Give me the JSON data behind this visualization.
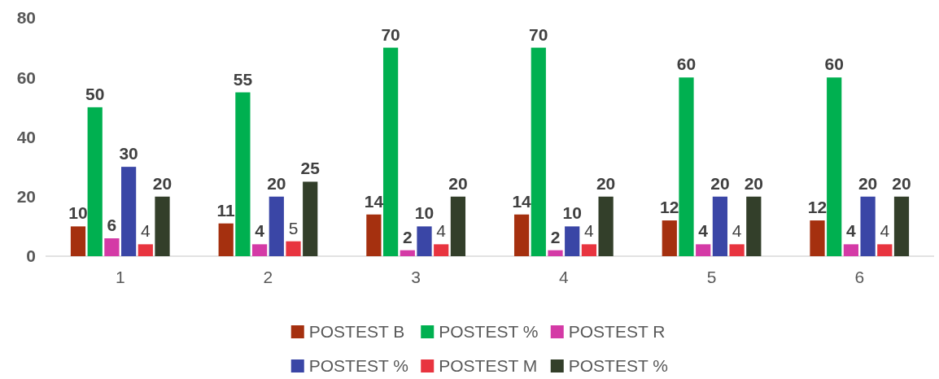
{
  "chart_data": {
    "type": "bar",
    "categories": [
      "1",
      "2",
      "3",
      "4",
      "5",
      "6"
    ],
    "series": [
      {
        "name": "POSTEST B",
        "color": "#a5300f",
        "values": [
          10,
          11,
          14,
          14,
          12,
          12
        ]
      },
      {
        "name": "POSTEST %",
        "color": "#00b050",
        "values": [
          50,
          55,
          70,
          70,
          60,
          60
        ]
      },
      {
        "name": "POSTEST R",
        "color": "#d43aa6",
        "values": [
          6,
          4,
          2,
          2,
          4,
          4
        ]
      },
      {
        "name": "POSTEST %",
        "color": "#3a46a6",
        "values": [
          30,
          20,
          10,
          10,
          20,
          20
        ]
      },
      {
        "name": "POSTEST M",
        "color": "#e8343f",
        "values": [
          4,
          5,
          4,
          4,
          4,
          4
        ]
      },
      {
        "name": "POSTEST %",
        "color": "#333f2a",
        "values": [
          20,
          25,
          20,
          20,
          20,
          20
        ]
      }
    ],
    "ylim": [
      0,
      80
    ],
    "yticks": [
      0,
      20,
      40,
      60,
      80
    ],
    "grid": false,
    "legend": "bottom",
    "data_labels": true
  }
}
